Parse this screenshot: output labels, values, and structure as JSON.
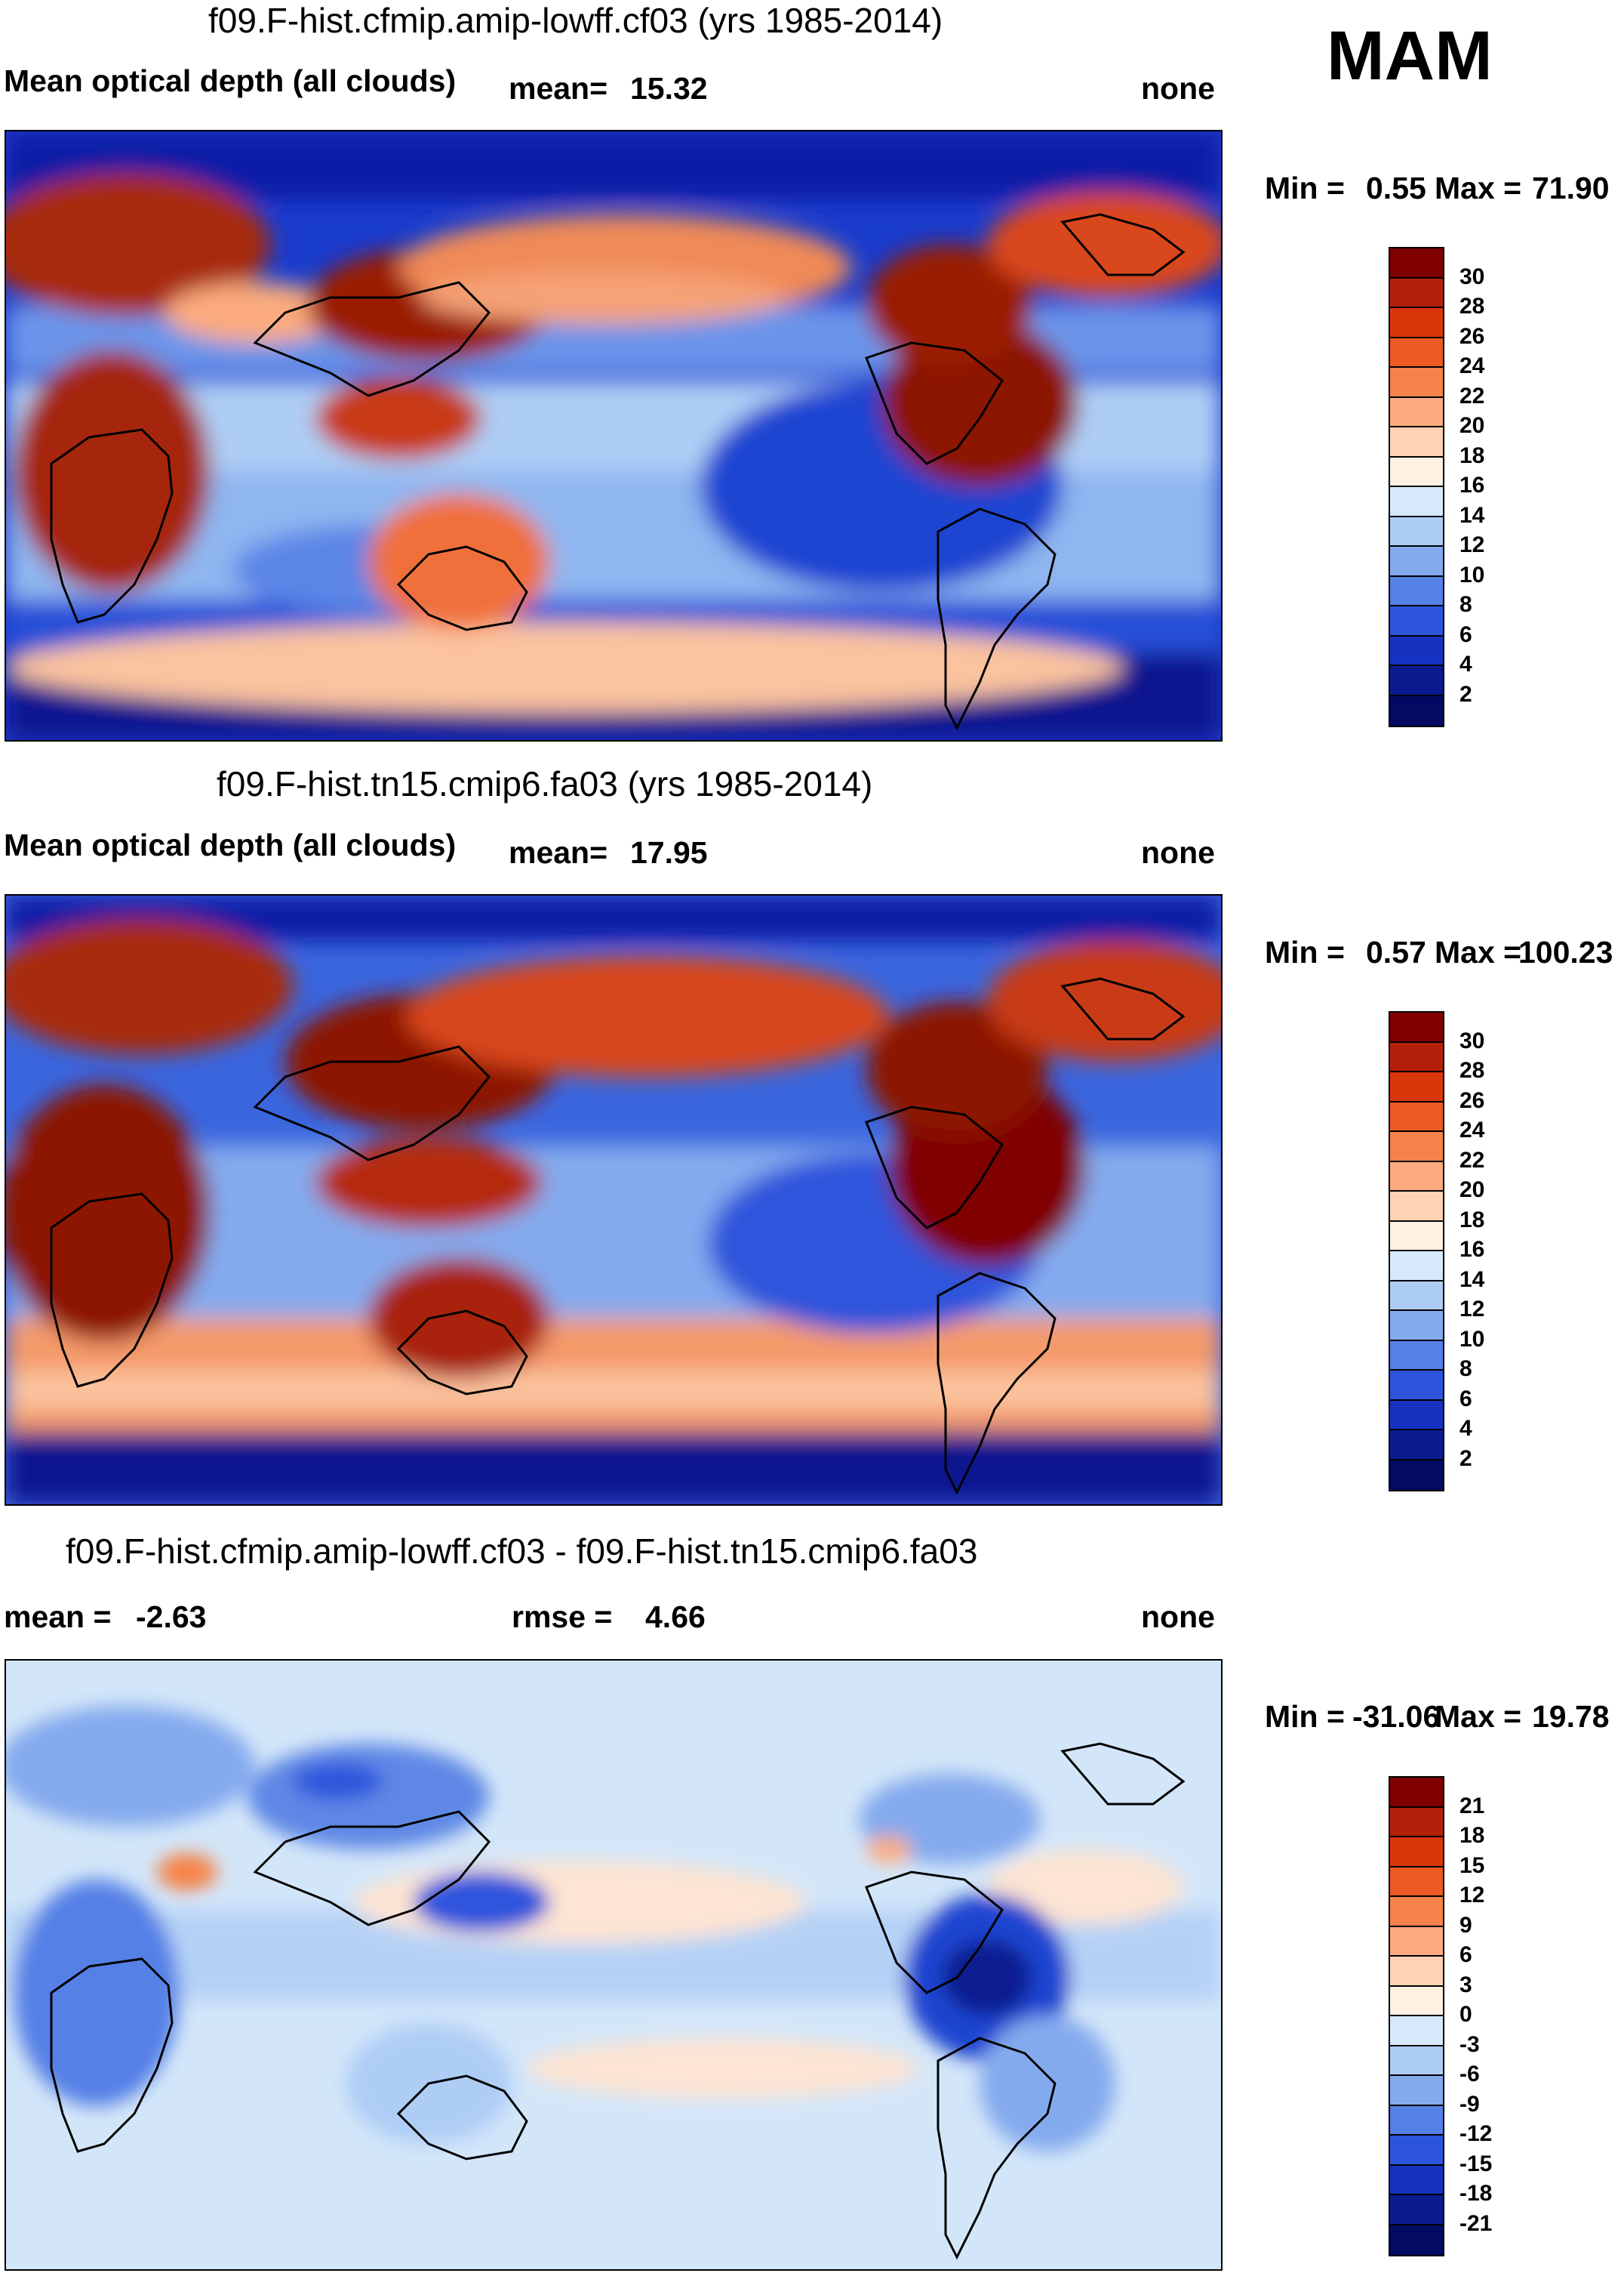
{
  "season": "MAM",
  "panels": [
    {
      "id": "panel-1",
      "title": "f09.F-hist.cfmip.amip-lowff.cf03 (yrs 1985-2014)",
      "variable": "Mean optical depth (all clouds)",
      "stat_label": "mean=",
      "stat_value": "15.32",
      "units": "none",
      "min_label": "Min =",
      "min_value": "0.55",
      "max_label": "Max =",
      "max_value": "71.90",
      "colorbar_ticks": [
        "30",
        "28",
        "26",
        "24",
        "22",
        "20",
        "18",
        "16",
        "14",
        "12",
        "10",
        "8",
        "6",
        "4",
        "2"
      ],
      "colorbar_colors": [
        "#800000",
        "#b3200a",
        "#d9360b",
        "#ee5a24",
        "#f5834a",
        "#fbab7d",
        "#fed2b3",
        "#fff0e4",
        "#d6e9fa",
        "#aecdf5",
        "#84aaee",
        "#5580e6",
        "#2d55dc",
        "#1532c0",
        "#0a1b8f",
        "#020a62"
      ]
    },
    {
      "id": "panel-2",
      "title": "f09.F-hist.tn15.cmip6.fa03 (yrs 1985-2014)",
      "variable": "Mean optical depth (all clouds)",
      "stat_label": "mean=",
      "stat_value": "17.95",
      "units": "none",
      "min_label": "Min =",
      "min_value": "0.57",
      "max_label": "Max =",
      "max_value": "100.23",
      "colorbar_ticks": [
        "30",
        "28",
        "26",
        "24",
        "22",
        "20",
        "18",
        "16",
        "14",
        "12",
        "10",
        "8",
        "6",
        "4",
        "2"
      ],
      "colorbar_colors": [
        "#800000",
        "#b3200a",
        "#d9360b",
        "#ee5a24",
        "#f5834a",
        "#fbab7d",
        "#fed2b3",
        "#fff0e4",
        "#d6e9fa",
        "#aecdf5",
        "#84aaee",
        "#5580e6",
        "#2d55dc",
        "#1532c0",
        "#0a1b8f",
        "#020a62"
      ]
    },
    {
      "id": "panel-3",
      "title": "f09.F-hist.cfmip.amip-lowff.cf03 - f09.F-hist.tn15.cmip6.fa03",
      "mean_label": "mean =",
      "mean_value": "-2.63",
      "rmse_label": "rmse =",
      "rmse_value": "4.66",
      "units": "none",
      "min_label": "Min =",
      "min_value": "-31.06",
      "max_label": "Max =",
      "max_value": "19.78",
      "colorbar_ticks": [
        "21",
        "18",
        "15",
        "12",
        "9",
        "6",
        "3",
        "0",
        "-3",
        "-6",
        "-9",
        "-12",
        "-15",
        "-18",
        "-21"
      ],
      "colorbar_colors": [
        "#800000",
        "#b3200a",
        "#d9360b",
        "#ee5a24",
        "#f5834a",
        "#fbab7d",
        "#fed2b3",
        "#fff0e4",
        "#d6e9fa",
        "#aecdf5",
        "#84aaee",
        "#5580e6",
        "#2d55dc",
        "#1532c0",
        "#0a1b8f",
        "#020a62"
      ]
    }
  ]
}
